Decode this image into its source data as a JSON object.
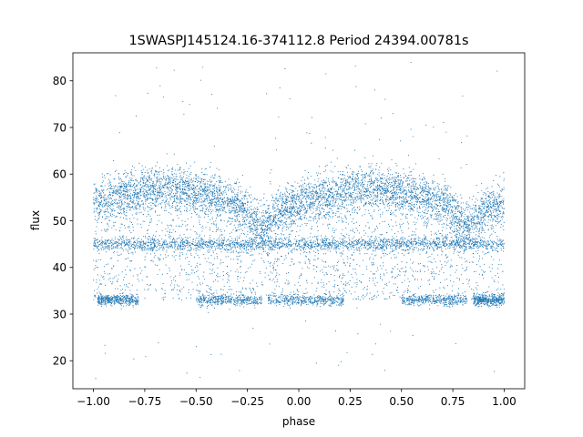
{
  "chart_data": {
    "type": "scatter",
    "title": "1SWASPJ145124.16-374112.8 Period 24394.00781s",
    "xlabel": "phase",
    "ylabel": "flux",
    "xlim": [
      -1.1,
      1.1
    ],
    "ylim": [
      14,
      86
    ],
    "xticks": [
      -1.0,
      -0.75,
      -0.5,
      -0.25,
      0.0,
      0.25,
      0.5,
      0.75,
      1.0
    ],
    "xtick_labels": [
      "−1.00",
      "−0.75",
      "−0.50",
      "−0.25",
      "0.00",
      "0.25",
      "0.50",
      "0.75",
      "1.00"
    ],
    "yticks": [
      20,
      30,
      40,
      50,
      60,
      70,
      80
    ],
    "ytick_labels": [
      "20",
      "30",
      "40",
      "50",
      "60",
      "70",
      "80"
    ],
    "grid": false,
    "legend": "none",
    "marker_color": "#1f77b4",
    "series": [
      {
        "values_description_free": true,
        "points": [
          [
            -1.0,
            55.0
          ],
          [
            -0.95,
            56.0
          ],
          [
            -0.9,
            56.5
          ],
          [
            -0.85,
            57.0
          ],
          [
            -0.8,
            57.0
          ],
          [
            -0.75,
            57.0
          ],
          [
            -0.7,
            56.5
          ],
          [
            -0.65,
            56.0
          ],
          [
            -0.6,
            55.5
          ],
          [
            -0.55,
            55.0
          ],
          [
            -0.5,
            54.5
          ],
          [
            -0.45,
            54.0
          ],
          [
            -0.4,
            53.5
          ],
          [
            -0.35,
            53.0
          ],
          [
            -0.3,
            52.0
          ],
          [
            -0.25,
            51.0
          ],
          [
            -0.2,
            50.0
          ],
          [
            -0.15,
            50.0
          ],
          [
            -0.1,
            51.0
          ],
          [
            -0.05,
            52.5
          ],
          [
            0.0,
            54.0
          ],
          [
            0.05,
            55.0
          ],
          [
            0.1,
            56.0
          ],
          [
            0.15,
            56.5
          ],
          [
            0.2,
            57.0
          ],
          [
            0.25,
            57.0
          ],
          [
            0.3,
            56.5
          ],
          [
            0.35,
            56.0
          ],
          [
            0.4,
            55.5
          ],
          [
            0.45,
            55.0
          ],
          [
            0.5,
            54.5
          ],
          [
            0.55,
            54.0
          ],
          [
            0.6,
            53.5
          ],
          [
            0.65,
            53.0
          ],
          [
            0.7,
            52.0
          ],
          [
            0.75,
            51.0
          ],
          [
            0.8,
            50.0
          ],
          [
            0.85,
            50.0
          ],
          [
            0.9,
            51.0
          ],
          [
            0.95,
            52.5
          ],
          [
            1.0,
            54.0
          ],
          [
            -1.0,
            45.0
          ],
          [
            -0.9,
            45.0
          ],
          [
            -0.8,
            45.0
          ],
          [
            -0.7,
            45.0
          ],
          [
            -0.6,
            45.0
          ],
          [
            -0.5,
            45.0
          ],
          [
            -0.4,
            45.0
          ],
          [
            -0.3,
            45.0
          ],
          [
            -0.2,
            45.0
          ],
          [
            -0.1,
            45.0
          ],
          [
            0.0,
            45.0
          ],
          [
            0.1,
            45.0
          ],
          [
            0.2,
            45.0
          ],
          [
            0.3,
            45.0
          ],
          [
            0.4,
            45.0
          ],
          [
            0.5,
            45.0
          ],
          [
            0.6,
            45.0
          ],
          [
            0.7,
            45.0
          ],
          [
            0.8,
            45.0
          ],
          [
            0.9,
            45.0
          ],
          [
            1.0,
            45.0
          ],
          [
            -0.95,
            33.0
          ],
          [
            -0.9,
            33.0
          ],
          [
            -0.85,
            33.0
          ],
          [
            -0.8,
            33.0
          ],
          [
            -0.45,
            33.0
          ],
          [
            -0.35,
            33.0
          ],
          [
            -0.25,
            32.5
          ],
          [
            -0.15,
            32.5
          ],
          [
            -0.05,
            33.0
          ],
          [
            0.05,
            33.0
          ],
          [
            0.15,
            33.0
          ],
          [
            0.2,
            33.0
          ],
          [
            0.55,
            33.0
          ],
          [
            0.65,
            33.0
          ],
          [
            0.75,
            32.5
          ],
          [
            0.85,
            32.5
          ],
          [
            0.95,
            33.0
          ]
        ]
      }
    ]
  }
}
